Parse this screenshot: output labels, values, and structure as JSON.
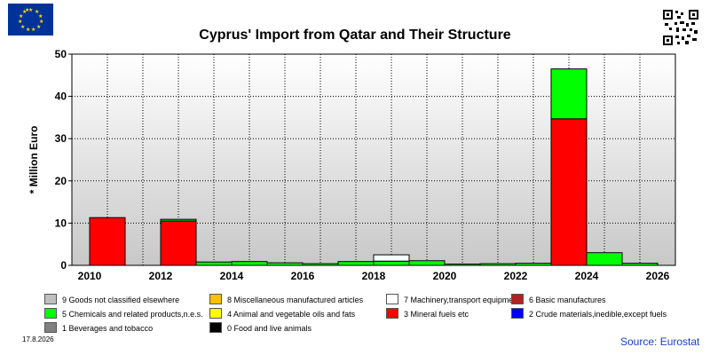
{
  "title": "Cyprus' Import from Qatar and Their Structure",
  "date_stamp": "17.8.2026",
  "source": "Source: Eurostat",
  "icons": [
    "eu-flag-icon",
    "qr-code-icon"
  ],
  "chart_data": {
    "type": "bar",
    "stacked": true,
    "title": "Cyprus' Import from Qatar and Their Structure",
    "ylabel": "* Million Euro",
    "xlabel": "",
    "ylim": [
      0,
      50
    ],
    "yticks": [
      0,
      10,
      20,
      30,
      40,
      50
    ],
    "x_tick_labels": [
      "2010",
      "2012",
      "2014",
      "2016",
      "2018",
      "2020",
      "2022",
      "2024",
      "2026"
    ],
    "categories": [
      "2010",
      "2011",
      "2012",
      "2013",
      "2014",
      "2015",
      "2016",
      "2017",
      "2018",
      "2019",
      "2020",
      "2021",
      "2022",
      "2023",
      "2024",
      "2025"
    ],
    "grid": true,
    "series": [
      {
        "name": "3 Mineral fuels etc",
        "color": "#ff0000",
        "values": [
          11.3,
          0,
          10.5,
          0,
          0,
          0,
          0,
          0,
          0,
          0,
          0,
          0,
          0,
          34.7,
          0,
          0
        ]
      },
      {
        "name": "5 Chemicals and related products,n.e.s.",
        "color": "#00ff00",
        "values": [
          0,
          0,
          0.4,
          0.8,
          0.9,
          0.6,
          0.4,
          0.9,
          1.0,
          1.1,
          0.3,
          0.4,
          0.5,
          11.8,
          3.0,
          0.5
        ]
      },
      {
        "name": "7 Machinery,transport equipment",
        "color": "#ffffff",
        "values": [
          0,
          0,
          0,
          0,
          0,
          0,
          0,
          0,
          1.5,
          0,
          0,
          0,
          0,
          0,
          0,
          0
        ]
      }
    ],
    "legend": [
      {
        "label": "9 Goods not classified elsewhere",
        "color": "#c0c0c0"
      },
      {
        "label": "8 Miscellaneous manufactured articles",
        "color": "#ffc000"
      },
      {
        "label": "7 Machinery,transport equipment",
        "color": "#ffffff"
      },
      {
        "label": "6 Basic manufactures",
        "color": "#b22222"
      },
      {
        "label": "5 Chemicals and related products,n.e.s.",
        "color": "#00ff00"
      },
      {
        "label": "4 Animal and vegetable oils and fats",
        "color": "#ffff00"
      },
      {
        "label": "3 Mineral fuels etc",
        "color": "#ff0000"
      },
      {
        "label": "2 Crude materials,inedible,except fuels",
        "color": "#0000ff"
      },
      {
        "label": "1 Beverages and tobacco",
        "color": "#808080"
      },
      {
        "label": "0 Food and live animals",
        "color": "#000000"
      }
    ],
    "legend_placement": "bottom"
  }
}
